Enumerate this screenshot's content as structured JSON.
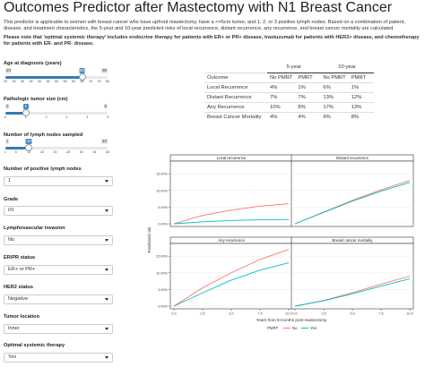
{
  "title": "Outcomes Predictor after Mastectomy with N1 Breast Cancer",
  "intro": {
    "p1": "This predictor is applicable to women with breast cancer who have upfront mastectomy, have a <=5cm tumor, and 1, 2, or 3 positive lymph nodes. Based on a combination of patient, disease, and treatment characteristics, the 5-year and 10-year predicted risks of local recurrence, distant recurrence, any recurrence, and breast cancer mortality are calculated.",
    "p2": "Please note that 'optimal systemic therapy' includes endocrine therapy for patients with ER+ or PR+ disease, trastuzumab for patients with HER2+ disease, and chemotherapy for patients with ER- and PR- disease."
  },
  "inputs": {
    "age": {
      "label": "Age at diagnosis (years)",
      "min": "20",
      "max": "80",
      "value": "65",
      "value_num": 65,
      "range": [
        20,
        80
      ],
      "ticks": [
        "20",
        "25",
        "30",
        "35",
        "40",
        "45",
        "50",
        "55",
        "60",
        "65",
        "70",
        "75",
        "80"
      ]
    },
    "tumor_size": {
      "label": "Pathologic tumor size (cm)",
      "min": "0",
      "max": "5",
      "value": "1",
      "value_num": 1,
      "range": [
        0,
        5
      ],
      "ticks": [
        "0",
        "1",
        "2",
        "3",
        "4",
        "5"
      ]
    },
    "nodes_sampled": {
      "label": "Number of lymph nodes sampled",
      "min": "1",
      "max": "40",
      "value": "10",
      "value_num": 10,
      "range": [
        1,
        40
      ],
      "ticks": [
        "1",
        "5",
        "10",
        "15",
        "20",
        "25",
        "30",
        "35",
        "40"
      ]
    },
    "positive_nodes": {
      "label": "Number of positive lymph nodes",
      "value": "1"
    },
    "grade": {
      "label": "Grade",
      "value": "I/II"
    },
    "lvi": {
      "label": "Lymphovascular invasion",
      "value": "No"
    },
    "er_pr": {
      "label": "ER/PR status",
      "value": "ER+ or PR+"
    },
    "her2": {
      "label": "HER2 status",
      "value": "Negative"
    },
    "location": {
      "label": "Tumor location",
      "value": "Inner"
    },
    "therapy": {
      "label": "Optimal systemic therapy",
      "value": "Yes"
    }
  },
  "table": {
    "group_headers": [
      "5-year",
      "10-year"
    ],
    "headers": [
      "Outcome",
      "No PMRT",
      "PMRT",
      "No PMRT",
      "PMRT"
    ],
    "rows": [
      [
        "Local Recurrence",
        "4%",
        "1%",
        "6%",
        "1%"
      ],
      [
        "Distant Recurrence",
        "7%",
        "7%",
        "13%",
        "12%"
      ],
      [
        "Any Recurrence",
        "10%",
        "8%",
        "17%",
        "13%"
      ],
      [
        "Breast Cancer Mortality",
        "4%",
        "4%",
        "9%",
        "8%"
      ]
    ]
  },
  "chart_data": {
    "type": "line",
    "ylabel": "Predicted risk",
    "xlabel": "Years from 6-months post-mastectomy",
    "legend_title": "PMRT",
    "legend_labels": [
      "No",
      "Yes"
    ],
    "legend_position": "bottom",
    "colors": {
      "No": "#f8766d",
      "Yes": "#00bfc4"
    },
    "x_ticks": [
      "0.0",
      "2.5",
      "5.0",
      "7.5",
      "10.0"
    ],
    "y_ticks": [
      "0.00%",
      "5.00%",
      "10.00%",
      "15.00%"
    ],
    "xlim": [
      0,
      10
    ],
    "ylim": [
      0,
      0.18
    ],
    "panels": [
      {
        "title": "Local recurrence",
        "series": [
          {
            "name": "No",
            "x": [
              0,
              2.5,
              5,
              7.5,
              10
            ],
            "y": [
              0,
              0.025,
              0.041,
              0.053,
              0.06
            ]
          },
          {
            "name": "Yes",
            "x": [
              0,
              2.5,
              5,
              7.5,
              10
            ],
            "y": [
              0,
              0.006,
              0.01,
              0.012,
              0.013
            ]
          }
        ]
      },
      {
        "title": "Distant recurrence",
        "series": [
          {
            "name": "No",
            "x": [
              0,
              2.5,
              5,
              7.5,
              10
            ],
            "y": [
              0,
              0.035,
              0.07,
              0.102,
              0.13
            ]
          },
          {
            "name": "Yes",
            "x": [
              0,
              2.5,
              5,
              7.5,
              10
            ],
            "y": [
              0,
              0.034,
              0.068,
              0.098,
              0.124
            ]
          }
        ]
      },
      {
        "title": "Any recurrence",
        "series": [
          {
            "name": "No",
            "x": [
              0,
              2.5,
              5,
              7.5,
              10
            ],
            "y": [
              0,
              0.055,
              0.1,
              0.14,
              0.17
            ]
          },
          {
            "name": "Yes",
            "x": [
              0,
              2.5,
              5,
              7.5,
              10
            ],
            "y": [
              0,
              0.04,
              0.078,
              0.108,
              0.13
            ]
          }
        ]
      },
      {
        "title": "Breast cancer mortality",
        "series": [
          {
            "name": "No",
            "x": [
              0,
              2.5,
              5,
              7.5,
              10
            ],
            "y": [
              0,
              0.017,
              0.04,
              0.066,
              0.09
            ]
          },
          {
            "name": "Yes",
            "x": [
              0,
              2.5,
              5,
              7.5,
              10
            ],
            "y": [
              0,
              0.016,
              0.037,
              0.06,
              0.082
            ]
          }
        ]
      }
    ]
  }
}
